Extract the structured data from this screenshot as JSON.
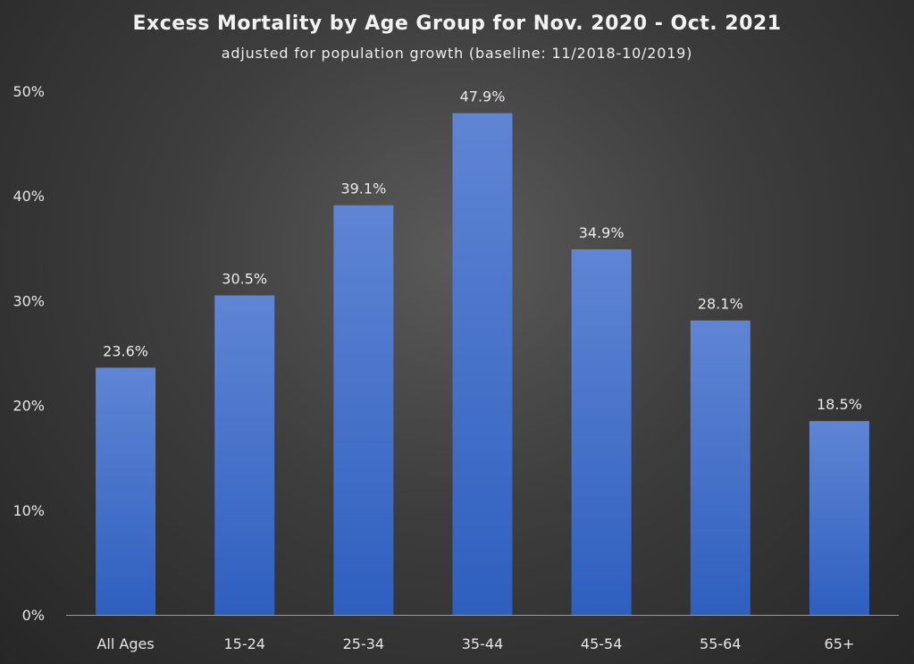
{
  "chart_data": {
    "type": "bar",
    "title": "Excess Mortality by Age Group for Nov. 2020 - Oct. 2021",
    "subtitle": "adjusted for population growth (baseline: 11/2018-10/2019)",
    "categories": [
      "All Ages",
      "15-24",
      "25-34",
      "35-44",
      "45-54",
      "55-64",
      "65+"
    ],
    "values": [
      23.6,
      30.5,
      39.1,
      47.9,
      34.9,
      28.1,
      18.5
    ],
    "data_labels": [
      "23.6%",
      "30.5%",
      "39.1%",
      "47.9%",
      "34.9%",
      "28.1%",
      "18.5%"
    ],
    "y_ticks": [
      0,
      10,
      20,
      30,
      40,
      50
    ],
    "y_tick_labels": [
      "0%",
      "10%",
      "20%",
      "30%",
      "40%",
      "50%"
    ],
    "ylim": [
      0,
      50
    ],
    "grid": false,
    "legend": "none",
    "colors": {
      "bar_top": "#5f85d4",
      "bar_bottom": "#2e5fbf",
      "axis": "#9a9a9a",
      "text": "#e6e6e6",
      "background": "#3d3d3d"
    }
  }
}
